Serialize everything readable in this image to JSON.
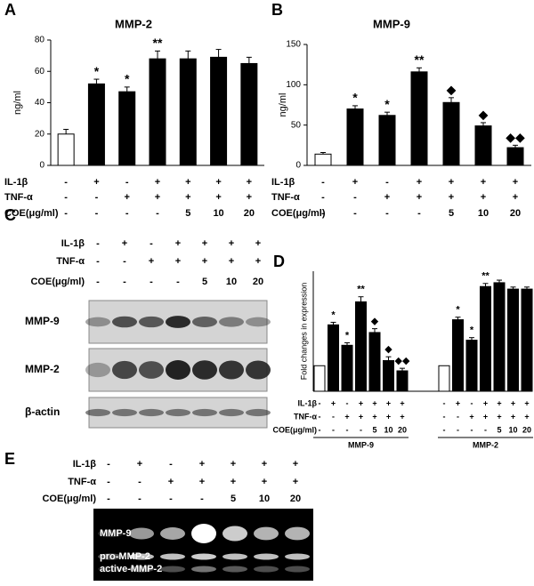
{
  "chart_data": [
    {
      "type": "bar",
      "panel": "A",
      "title": "MMP-2",
      "y_label": "ng/ml",
      "values": [
        20,
        52,
        47,
        68,
        68,
        69,
        65
      ],
      "errors": [
        3,
        3,
        3,
        5,
        5,
        5,
        4
      ],
      "annotations": [
        null,
        "*",
        "*",
        "**",
        null,
        null,
        null
      ],
      "colors": [
        "#ffffff",
        "#000000",
        "#000000",
        "#000000",
        "#000000",
        "#000000",
        "#000000"
      ],
      "ylim": [
        0,
        80
      ],
      "yticks": [
        0,
        20,
        40,
        60,
        80
      ],
      "treatment_rows": [
        {
          "label": "IL-1β",
          "values": [
            "-",
            "+",
            "-",
            "+",
            "+",
            "+",
            "+"
          ]
        },
        {
          "label": "TNF-α",
          "values": [
            "-",
            "-",
            "+",
            "+",
            "+",
            "+",
            "+"
          ]
        },
        {
          "label": "COE(μg/ml)",
          "values": [
            "-",
            "-",
            "-",
            "-",
            "5",
            "10",
            "20"
          ]
        }
      ]
    },
    {
      "type": "bar",
      "panel": "B",
      "title": "MMP-9",
      "y_label": "ng/ml",
      "values": [
        14,
        70,
        62,
        116,
        78,
        49,
        22
      ],
      "errors": [
        2,
        4,
        4,
        5,
        6,
        4,
        3
      ],
      "annotations": [
        null,
        "*",
        "*",
        "**",
        "◆",
        "◆",
        "◆◆"
      ],
      "colors": [
        "#ffffff",
        "#000000",
        "#000000",
        "#000000",
        "#000000",
        "#000000",
        "#000000"
      ],
      "ylim": [
        0,
        150
      ],
      "yticks": [
        0,
        50,
        100,
        150
      ],
      "treatment_rows": [
        {
          "label": "IL-1β",
          "values": [
            "-",
            "+",
            "-",
            "+",
            "+",
            "+",
            "+"
          ]
        },
        {
          "label": "TNF-α",
          "values": [
            "-",
            "-",
            "+",
            "+",
            "+",
            "+",
            "+"
          ]
        },
        {
          "label": "COE(μg/ml)",
          "values": [
            "-",
            "-",
            "-",
            "-",
            "5",
            "10",
            "20"
          ]
        }
      ]
    },
    {
      "type": "bar",
      "panel": "D",
      "y_label": "Fold changes in expression",
      "ylim": [
        0,
        4.7
      ],
      "groups": [
        {
          "name": "MMP-9",
          "values": [
            1,
            2.6,
            1.8,
            3.5,
            2.3,
            1.2,
            0.8
          ],
          "errors": [
            null,
            0.1,
            0.1,
            0.2,
            0.15,
            0.15,
            0.1
          ],
          "annotations": [
            null,
            "*",
            "*",
            "**",
            "◆",
            "◆",
            "◆◆"
          ],
          "colors": [
            "#ffffff",
            "#000000",
            "#000000",
            "#000000",
            "#000000",
            "#000000",
            "#000000"
          ]
        },
        {
          "name": "MMP-2",
          "values": [
            1,
            2.8,
            2.0,
            4.1,
            4.25,
            4.0,
            4.0
          ],
          "errors": [
            null,
            0.1,
            0.1,
            0.12,
            0.1,
            0.08,
            0.08
          ],
          "annotations": [
            null,
            "*",
            "*",
            "**",
            null,
            null,
            null
          ],
          "colors": [
            "#ffffff",
            "#000000",
            "#000000",
            "#000000",
            "#000000",
            "#000000",
            "#000000"
          ]
        }
      ],
      "treatment_rows": [
        {
          "label": "IL-1β",
          "values": [
            "-",
            "+",
            "-",
            "+",
            "+",
            "+",
            "+",
            "-",
            "+",
            "-",
            "+",
            "+",
            "+",
            "+"
          ]
        },
        {
          "label": "TNF-α",
          "values": [
            "-",
            "-",
            "+",
            "+",
            "+",
            "+",
            "+",
            "-",
            "-",
            "+",
            "+",
            "+",
            "+",
            "+"
          ]
        },
        {
          "label": "COE(μg/ml)",
          "values": [
            "-",
            "-",
            "-",
            "-",
            "5",
            "10",
            "20",
            "-",
            "-",
            "-",
            "-",
            "5",
            "10",
            "20"
          ]
        }
      ]
    }
  ],
  "blot": {
    "panel": "C",
    "bands": [
      "MMP-9",
      "MMP-2",
      "β-actin"
    ],
    "treatment_rows": [
      {
        "label": "IL-1β",
        "values": [
          "-",
          "+",
          "-",
          "+",
          "+",
          "+",
          "+"
        ]
      },
      {
        "label": "TNF-α",
        "values": [
          "-",
          "-",
          "+",
          "+",
          "+",
          "+",
          "+"
        ]
      },
      {
        "label": "COE(μg/ml)",
        "values": [
          "-",
          "-",
          "-",
          "-",
          "5",
          "10",
          "20"
        ]
      }
    ]
  },
  "zymogram": {
    "panel": "E",
    "bands": [
      "MMP-9",
      "pro-MMP-2",
      "active-MMP-2"
    ],
    "treatment_rows": [
      {
        "label": "IL-1β",
        "values": [
          "-",
          "+",
          "-",
          "+",
          "+",
          "+",
          "+"
        ]
      },
      {
        "label": "TNF-α",
        "values": [
          "-",
          "-",
          "+",
          "+",
          "+",
          "+",
          "+"
        ]
      },
      {
        "label": "COE(μg/ml)",
        "values": [
          "-",
          "-",
          "-",
          "-",
          "5",
          "10",
          "20"
        ]
      }
    ]
  }
}
